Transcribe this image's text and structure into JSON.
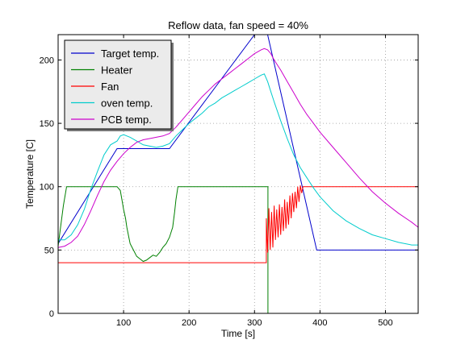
{
  "chart_data": {
    "type": "line",
    "title": "Reflow data, fan speed = 40%",
    "xlabel": "Time [s]",
    "ylabel": "Temperature [C]",
    "xlim": [
      0,
      550
    ],
    "ylim": [
      0,
      220
    ],
    "xticks": [
      100,
      200,
      300,
      400,
      500
    ],
    "yticks": [
      0,
      50,
      100,
      150,
      200
    ],
    "grid": true,
    "legend_position": "top-left",
    "series": [
      {
        "name": "Target temp.",
        "color": "#0000cc",
        "x": [
          0,
          90,
          170,
          300,
          320,
          395,
          550
        ],
        "y": [
          55,
          130,
          130,
          220,
          220,
          50,
          50
        ]
      },
      {
        "name": "Heater",
        "color": "#008000",
        "x": [
          0,
          3,
          8,
          13,
          90,
          95,
          98,
          100,
          103,
          105,
          108,
          110,
          115,
          120,
          125,
          130,
          135,
          140,
          145,
          150,
          155,
          160,
          165,
          170,
          175,
          178,
          180,
          183,
          320,
          320.5,
          320.5
        ],
        "y": [
          53,
          65,
          85,
          100,
          100,
          97,
          88,
          82,
          75,
          68,
          60,
          55,
          50,
          45,
          43,
          41,
          42,
          44,
          46,
          45,
          48,
          52,
          55,
          60,
          68,
          80,
          90,
          100,
          100,
          100,
          0
        ]
      },
      {
        "name": "Fan",
        "color": "#ff0000",
        "x": [
          0,
          318,
          318,
          320,
          322,
          324,
          326,
          328,
          330,
          332,
          334,
          336,
          338,
          340,
          342,
          344,
          346,
          348,
          350,
          352,
          354,
          356,
          358,
          360,
          362,
          364,
          366,
          368,
          370,
          372,
          374,
          376,
          550
        ],
        "y": [
          40,
          40,
          75,
          48,
          83,
          50,
          80,
          52,
          85,
          58,
          82,
          60,
          86,
          62,
          84,
          65,
          90,
          67,
          88,
          70,
          93,
          75,
          95,
          80,
          96,
          83,
          100,
          88,
          101,
          95,
          100,
          100,
          100
        ]
      },
      {
        "name": "oven temp.",
        "color": "#00cccc",
        "x": [
          0,
          10,
          20,
          30,
          40,
          50,
          60,
          70,
          80,
          90,
          95,
          100,
          110,
          120,
          130,
          140,
          150,
          160,
          170,
          180,
          190,
          200,
          210,
          220,
          230,
          240,
          250,
          260,
          270,
          280,
          290,
          300,
          310,
          315,
          320,
          325,
          330,
          340,
          350,
          360,
          370,
          380,
          390,
          400,
          420,
          440,
          460,
          480,
          500,
          520,
          540,
          550
        ],
        "y": [
          58,
          58,
          62,
          70,
          82,
          98,
          112,
          125,
          133,
          136,
          140,
          141,
          139,
          136,
          133,
          132,
          131,
          132,
          134,
          140,
          145,
          150,
          154,
          158,
          163,
          166,
          170,
          173,
          176,
          179,
          182,
          185,
          188,
          189,
          183,
          175,
          167,
          152,
          138,
          125,
          115,
          107,
          99,
          92,
          81,
          73,
          67,
          62,
          59,
          56,
          54,
          54
        ]
      },
      {
        "name": "PCB temp.",
        "color": "#cc00cc",
        "x": [
          0,
          10,
          20,
          30,
          40,
          50,
          60,
          70,
          80,
          90,
          100,
          110,
          120,
          130,
          140,
          150,
          160,
          170,
          180,
          190,
          200,
          210,
          220,
          230,
          240,
          250,
          260,
          270,
          280,
          290,
          300,
          310,
          315,
          320,
          325,
          330,
          340,
          350,
          360,
          370,
          380,
          390,
          400,
          420,
          440,
          460,
          480,
          500,
          520,
          540,
          550
        ],
        "y": [
          52,
          53,
          56,
          61,
          70,
          81,
          93,
          104,
          113,
          120,
          126,
          131,
          135,
          137,
          138,
          139,
          140,
          142,
          147,
          153,
          159,
          165,
          171,
          176,
          181,
          185,
          189,
          193,
          197,
          201,
          205,
          208,
          209,
          208,
          205,
          200,
          192,
          183,
          174,
          165,
          157,
          150,
          143,
          131,
          119,
          107,
          96,
          87,
          79,
          72,
          68
        ]
      }
    ]
  }
}
